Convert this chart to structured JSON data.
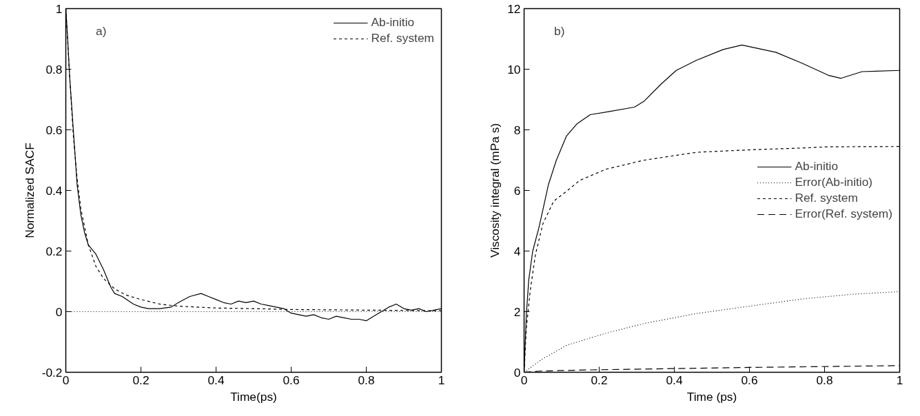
{
  "chart_data": [
    {
      "type": "line",
      "xlabel": "Time(ps)",
      "ylabel": "Normalized SACF",
      "annotations": [
        "a)"
      ],
      "xlim": [
        0,
        1
      ],
      "ylim": [
        -0.2,
        1
      ],
      "xticks": [
        0,
        0.2,
        0.4,
        0.6,
        0.8,
        1
      ],
      "yticks": [
        -0.2,
        0,
        0.2,
        0.4,
        0.6,
        0.8,
        1
      ],
      "legend": "top right",
      "grid": false,
      "ref_lines": [
        {
          "axis": "y",
          "value": 0,
          "label": null,
          "color": "#000000",
          "line_style": "dotted"
        }
      ],
      "series": [
        {
          "name": "Ab-initio",
          "color": "#000000",
          "line_style": "solid",
          "x": [
            0,
            0.005,
            0.01,
            0.02,
            0.03,
            0.04,
            0.05,
            0.06,
            0.08,
            0.1,
            0.12,
            0.13,
            0.15,
            0.18,
            0.2,
            0.22,
            0.25,
            0.28,
            0.3,
            0.33,
            0.36,
            0.38,
            0.4,
            0.42,
            0.44,
            0.46,
            0.48,
            0.5,
            0.52,
            0.54,
            0.56,
            0.58,
            0.6,
            0.62,
            0.64,
            0.66,
            0.68,
            0.7,
            0.72,
            0.74,
            0.76,
            0.78,
            0.8,
            0.82,
            0.84,
            0.86,
            0.88,
            0.9,
            0.92,
            0.94,
            0.96,
            0.98,
            1.0
          ],
          "values": [
            1.0,
            0.9,
            0.78,
            0.6,
            0.42,
            0.32,
            0.26,
            0.22,
            0.19,
            0.14,
            0.08,
            0.06,
            0.05,
            0.025,
            0.015,
            0.01,
            0.01,
            0.015,
            0.03,
            0.05,
            0.06,
            0.05,
            0.04,
            0.03,
            0.025,
            0.035,
            0.03,
            0.035,
            0.025,
            0.02,
            0.015,
            0.01,
            -0.005,
            -0.01,
            -0.015,
            -0.01,
            -0.02,
            -0.025,
            -0.015,
            -0.02,
            -0.025,
            -0.025,
            -0.03,
            -0.015,
            0.0,
            0.015,
            0.025,
            0.01,
            0.005,
            0.01,
            0.0,
            0.005,
            0.01
          ]
        },
        {
          "name": "Ref. system",
          "color": "#000000",
          "line_style": "dashed",
          "x": [
            0,
            0.01,
            0.02,
            0.03,
            0.04,
            0.06,
            0.08,
            0.1,
            0.13,
            0.16,
            0.2,
            0.25,
            0.3,
            0.4,
            0.5,
            0.6,
            0.8,
            1.0
          ],
          "values": [
            1.0,
            0.78,
            0.58,
            0.44,
            0.34,
            0.22,
            0.15,
            0.11,
            0.075,
            0.055,
            0.04,
            0.025,
            0.018,
            0.012,
            0.01,
            0.007,
            0.005,
            0.003
          ]
        }
      ]
    },
    {
      "type": "line",
      "xlabel": "Time (ps)",
      "ylabel": "Viscosity integral (mPa s)",
      "annotations": [
        "b)"
      ],
      "xlim": [
        0,
        1
      ],
      "ylim": [
        0,
        12
      ],
      "xticks": [
        0,
        0.2,
        0.4,
        0.6,
        0.8,
        1
      ],
      "yticks": [
        0,
        2,
        4,
        6,
        8,
        10,
        12
      ],
      "legend": "right",
      "grid": false,
      "series": [
        {
          "name": "Ab-initio",
          "color": "#000000",
          "line_style": "solid",
          "x": [
            0,
            0.006,
            0.0125,
            0.023,
            0.04,
            0.065,
            0.086,
            0.113,
            0.141,
            0.176,
            0.225,
            0.294,
            0.32,
            0.364,
            0.405,
            0.46,
            0.53,
            0.58,
            0.67,
            0.74,
            0.81,
            0.843,
            0.9,
            1.0
          ],
          "values": [
            0,
            1.9,
            3.06,
            4.0,
            4.8,
            6.2,
            7.0,
            7.8,
            8.2,
            8.5,
            8.6,
            8.75,
            8.95,
            9.5,
            9.96,
            10.3,
            10.65,
            10.8,
            10.56,
            10.2,
            9.8,
            9.7,
            9.92,
            9.96
          ]
        },
        {
          "name": "Error(Ab-initio)",
          "color": "#000000",
          "line_style": "dotted",
          "x": [
            0,
            0.044,
            0.113,
            0.218,
            0.32,
            0.46,
            0.6,
            0.74,
            0.88,
            1.0
          ],
          "values": [
            0,
            0.4,
            0.89,
            1.29,
            1.61,
            1.94,
            2.18,
            2.42,
            2.58,
            2.66
          ]
        },
        {
          "name": "Ref. system",
          "color": "#000000",
          "line_style": "dashed",
          "x": [
            0,
            0.006,
            0.016,
            0.03,
            0.05,
            0.079,
            0.113,
            0.148,
            0.218,
            0.32,
            0.46,
            0.6,
            0.74,
            0.81,
            1.0
          ],
          "values": [
            0,
            1.45,
            2.66,
            3.87,
            4.9,
            5.65,
            5.97,
            6.33,
            6.7,
            7.0,
            7.26,
            7.34,
            7.4,
            7.44,
            7.45
          ]
        },
        {
          "name": "Error(Ref. system)",
          "color": "#000000",
          "line_style": "longdash",
          "x": [
            0,
            0.044,
            0.18,
            0.39,
            0.6,
            0.81,
            1.0
          ],
          "values": [
            0,
            0.04,
            0.08,
            0.12,
            0.16,
            0.19,
            0.22
          ]
        }
      ]
    }
  ]
}
